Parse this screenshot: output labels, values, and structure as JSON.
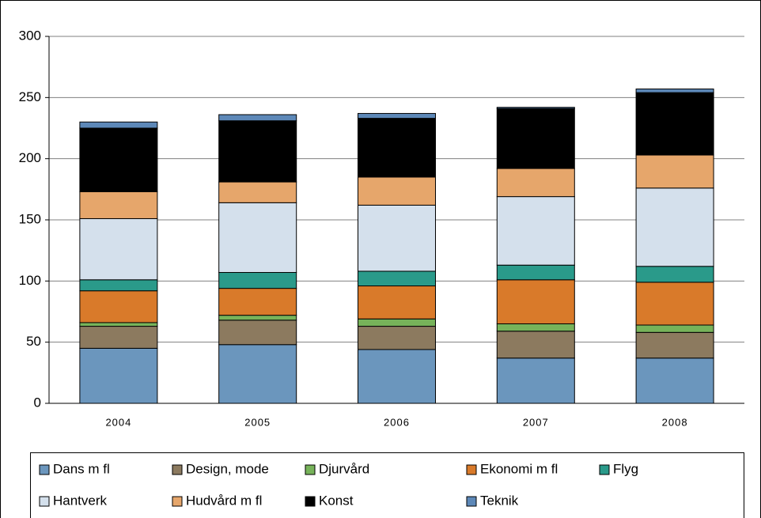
{
  "chart_data": {
    "type": "stacked_bar",
    "categories": [
      "2004",
      "2005",
      "2006",
      "2007",
      "2008"
    ],
    "series": [
      {
        "name": "Dans m fl",
        "color": "#6b96bd",
        "values": [
          45,
          48,
          44,
          37,
          37
        ]
      },
      {
        "name": "Design, mode",
        "color": "#8c7a5f",
        "values": [
          18,
          20,
          19,
          22,
          21
        ]
      },
      {
        "name": "Djurvård",
        "color": "#77b35a",
        "values": [
          3,
          4,
          6,
          6,
          6
        ]
      },
      {
        "name": "Ekonomi m fl",
        "color": "#d97a2a",
        "values": [
          26,
          22,
          27,
          36,
          35
        ]
      },
      {
        "name": "Flyg",
        "color": "#2a9a8a",
        "values": [
          9,
          13,
          12,
          12,
          13
        ]
      },
      {
        "name": "Hantverk",
        "color": "#d4e0ec",
        "values": [
          50,
          57,
          54,
          56,
          64
        ]
      },
      {
        "name": "Hudvård m fl",
        "color": "#e6a66b",
        "values": [
          22,
          17,
          23,
          23,
          27
        ]
      },
      {
        "name": "Konst",
        "color": "#000000",
        "values": [
          52,
          50,
          48,
          49,
          51
        ]
      },
      {
        "name": "Teknik",
        "color": "#5d88b8",
        "values": [
          5,
          5,
          4,
          1,
          3
        ]
      }
    ],
    "ylim": [
      0,
      300
    ],
    "yticks": [
      0,
      50,
      100,
      150,
      200,
      250,
      300
    ],
    "grid": true
  }
}
